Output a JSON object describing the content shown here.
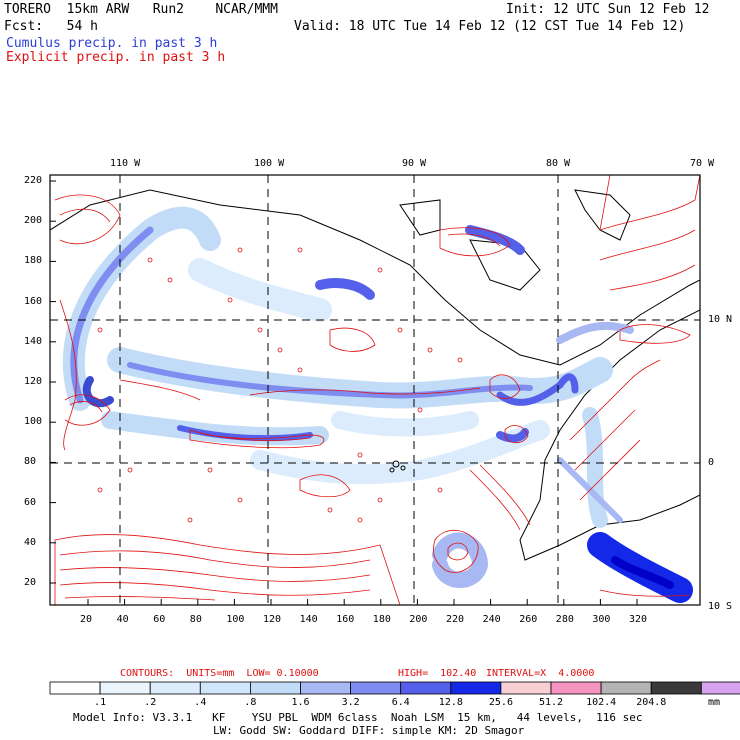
{
  "header": {
    "model": "TORERO  15km ARW   Run2    NCAR/MMM",
    "init": "Init: 12 UTC Sun 12 Feb 12",
    "fcst": "Fcst:   54 h",
    "valid": "Valid: 18 UTC Tue 14 Feb 12 (12 CST Tue 14 Feb 12)",
    "cumulus": "Cumulus precip. in past 3 h",
    "explicit": "Explicit precip. in past 3 h"
  },
  "map": {
    "lon_labels": [
      "110 W",
      "100 W",
      "90 W",
      "80 W",
      "70 W"
    ],
    "lat_labels": [
      "10 N",
      "0",
      "10 S"
    ],
    "y_ticks": [
      "220",
      "200",
      "180",
      "160",
      "140",
      "120",
      "100",
      "80",
      "60",
      "40",
      "20"
    ],
    "x_ticks": [
      "20",
      "40",
      "60",
      "80",
      "100",
      "120",
      "140",
      "160",
      "180",
      "200",
      "220",
      "240",
      "260",
      "280",
      "300",
      "320"
    ]
  },
  "contours": {
    "label": "CONTOURS:  UNITS=mm  LOW= 0.10000",
    "high": "HIGH=  102.40",
    "interval": "INTERVAL=X  4.0000"
  },
  "colorbar": {
    "labels": [
      ".1",
      ".2",
      ".4",
      ".8",
      "1.6",
      "3.2",
      "6.4",
      "12.8",
      "25.6",
      "51.2",
      "102.4",
      "204.8"
    ],
    "unit": "mm",
    "colors": [
      "#ffffff",
      "#eaf5fd",
      "#dcecfc",
      "#cfe6fb",
      "#c2dcf8",
      "#a8b8f2",
      "#7f8df0",
      "#5560ea",
      "#1428e8",
      "#f6d0d4",
      "#f594c0",
      "#b4b4b4",
      "#3a3a3a",
      "#d6a4ee"
    ]
  },
  "footer": {
    "line1": "Model Info: V3.3.1   KF    YSU PBL  WDM 6class  Noah LSM  15 km,   44 levels,  116 sec",
    "line2": "LW: Godd SW: Goddard DIFF: simple KM: 2D Smagor"
  }
}
